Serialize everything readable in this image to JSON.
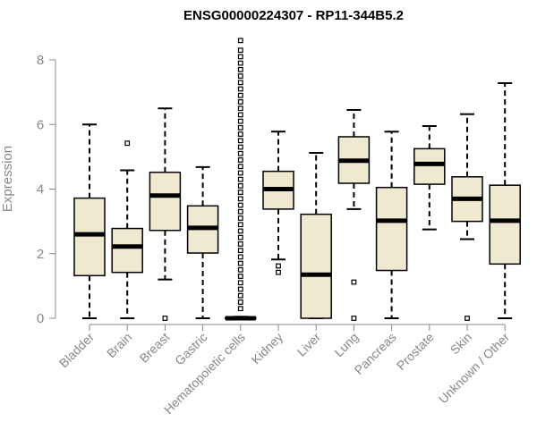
{
  "chart_data": {
    "type": "boxplot",
    "title": "ENSG00000224307 - RP11-344B5.2",
    "ylabel": "Expression",
    "xlabel": "",
    "ylim": [
      0,
      8.5
    ],
    "yticks": [
      0,
      2,
      4,
      6,
      8
    ],
    "box_fill": "#efe9d0",
    "line_color": "#000000",
    "axis_color": "#888888",
    "categories": [
      {
        "name": "Bladder",
        "min": 0,
        "q1": 1.32,
        "median": 2.6,
        "q3": 3.72,
        "max": 6.0,
        "outliers": []
      },
      {
        "name": "Brain",
        "min": 0,
        "q1": 1.42,
        "median": 2.22,
        "q3": 2.78,
        "max": 4.58,
        "outliers": [
          5.42
        ]
      },
      {
        "name": "Breast",
        "min": 1.2,
        "q1": 2.72,
        "median": 3.8,
        "q3": 4.52,
        "max": 6.5,
        "outliers": [
          0
        ]
      },
      {
        "name": "Gastric",
        "min": 0,
        "q1": 2.02,
        "median": 2.8,
        "q3": 3.48,
        "max": 4.68,
        "outliers": []
      },
      {
        "name": "Hematopoietic cells",
        "min": 0,
        "q1": 0,
        "median": 0,
        "q3": 0.02,
        "max": 0.05,
        "outliers": [
          0.3,
          0.5,
          0.7,
          0.9,
          1.1,
          1.3,
          1.5,
          1.7,
          1.9,
          2.1,
          2.3,
          2.5,
          2.7,
          2.9,
          3.1,
          3.3,
          3.5,
          3.7,
          3.9,
          4.1,
          4.3,
          4.5,
          4.7,
          4.9,
          5.1,
          5.3,
          5.5,
          5.7,
          5.9,
          6.1,
          6.3,
          6.5,
          6.7,
          6.9,
          7.1,
          7.3,
          7.5,
          7.7,
          7.9,
          8.1,
          8.3,
          8.6
        ]
      },
      {
        "name": "Kidney",
        "min": 1.82,
        "q1": 3.38,
        "median": 4.0,
        "q3": 4.55,
        "max": 5.78,
        "outliers": [
          1.62,
          1.42
        ]
      },
      {
        "name": "Liver",
        "min": 0,
        "q1": 0,
        "median": 1.35,
        "q3": 3.22,
        "max": 5.12,
        "outliers": []
      },
      {
        "name": "Lung",
        "min": 3.38,
        "q1": 4.18,
        "median": 4.88,
        "q3": 5.62,
        "max": 6.45,
        "outliers": [
          1.12,
          0
        ]
      },
      {
        "name": "Pancreas",
        "min": 0,
        "q1": 1.48,
        "median": 3.02,
        "q3": 4.05,
        "max": 5.78,
        "outliers": []
      },
      {
        "name": "Prostate",
        "min": 2.75,
        "q1": 4.15,
        "median": 4.78,
        "q3": 5.25,
        "max": 5.95,
        "outliers": []
      },
      {
        "name": "Skin",
        "min": 2.45,
        "q1": 3.0,
        "median": 3.7,
        "q3": 4.38,
        "max": 6.32,
        "outliers": [
          0
        ]
      },
      {
        "name": "Unknown / Other",
        "min": 0,
        "q1": 1.68,
        "median": 3.02,
        "q3": 4.12,
        "max": 7.28,
        "outliers": []
      }
    ]
  }
}
